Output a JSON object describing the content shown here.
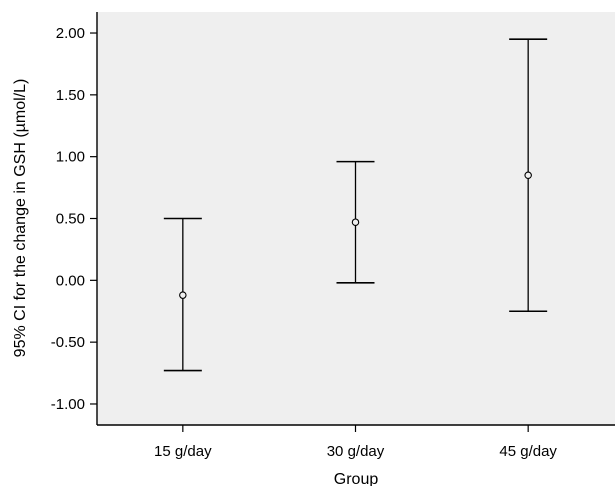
{
  "chart_data": {
    "type": "errorbar",
    "title": "",
    "xlabel": "Group",
    "ylabel": "95% CI for the change in GSH (µmol/L)",
    "categories": [
      "15 g/day",
      "30 g/day",
      "45 g/day"
    ],
    "series": [
      {
        "means": [
          -0.12,
          0.47,
          0.85
        ],
        "lower": [
          -0.73,
          -0.02,
          -0.25
        ],
        "upper": [
          0.5,
          0.96,
          1.95
        ]
      }
    ],
    "yticks": [
      "2.00",
      "1.50",
      "1.00",
      "0.50",
      "0.00",
      "-0.50",
      "-1.00"
    ],
    "ylim": [
      -1.17,
      2.17
    ],
    "grid": false,
    "legend": "none",
    "colors": {
      "plot_background": "#efefef",
      "axis": "#000000",
      "marks": "#000000"
    }
  }
}
